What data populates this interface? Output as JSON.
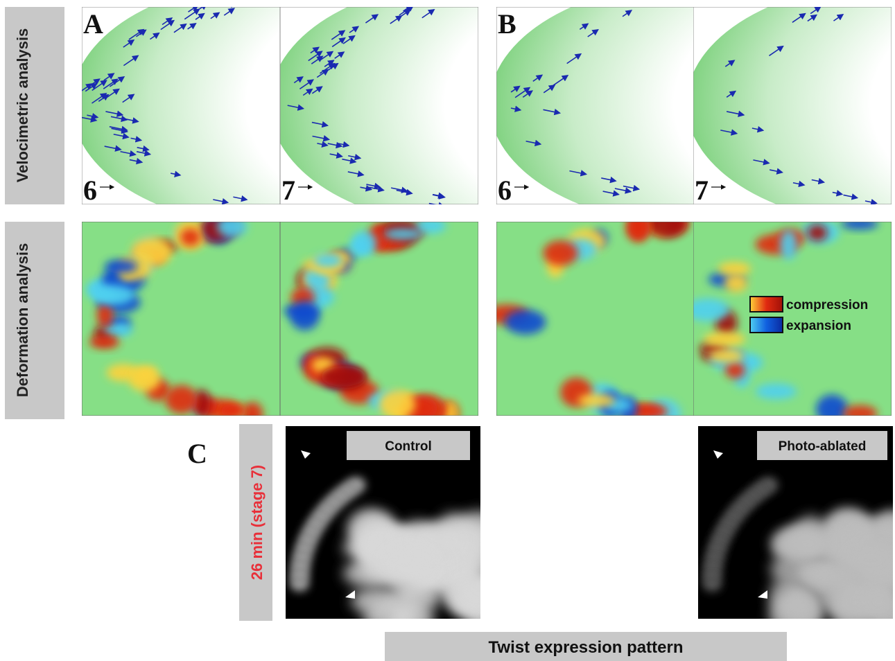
{
  "row_labels": [
    "Velocimetric analysis",
    "Deformation analysis"
  ],
  "panels": [
    {
      "letter": "A",
      "stages": [
        "6",
        "7"
      ]
    },
    {
      "letter": "B",
      "stages": [
        "6",
        "7"
      ]
    }
  ],
  "legend": [
    "compression",
    "expansion"
  ],
  "panel_c": {
    "letter": "C",
    "time_label": "26 min (stage 7)",
    "images": [
      "Control",
      "Photo-ablated"
    ],
    "caption": "Twist expression pattern"
  }
}
